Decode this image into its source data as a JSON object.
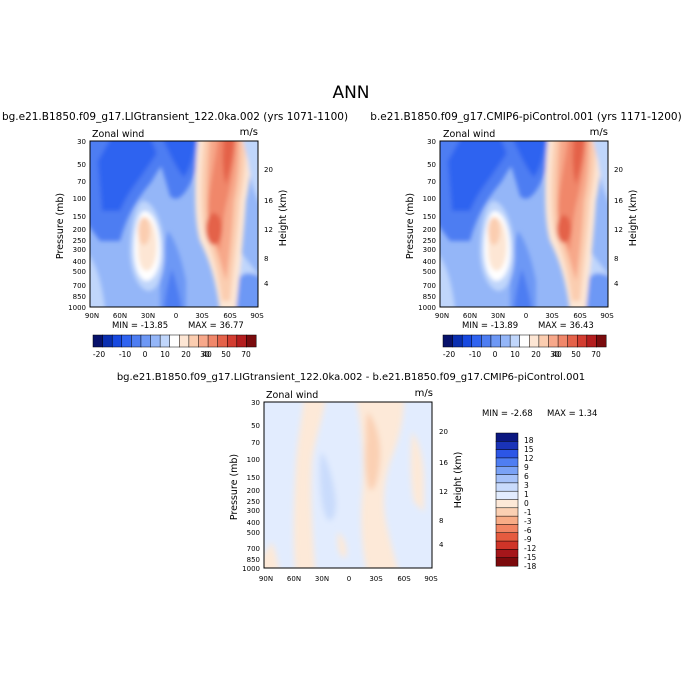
{
  "page_title": "ANN",
  "colors": {
    "main_scale": [
      "#08126b",
      "#0a2fb0",
      "#1749e0",
      "#2f63f0",
      "#4d7df2",
      "#6d98f5",
      "#94b6f8",
      "#c0d6fb",
      "#ffffff",
      "#fde6d4",
      "#fbcdb0",
      "#f7a88a",
      "#f0876a",
      "#e4624a",
      "#d33d31",
      "#b41d1e",
      "#7a0b0d"
    ],
    "diff_scale": [
      "#0b1780",
      "#1a33b8",
      "#2c56e6",
      "#4f7ef2",
      "#7aa2f6",
      "#a6c2f9",
      "#c9dbfc",
      "#e2ecfe",
      "#fde9d8",
      "#fbd0b3",
      "#f8ac86",
      "#f28563",
      "#e55b3f",
      "#cf3428",
      "#a5161a",
      "#7c0a0c"
    ]
  },
  "chart_data": [
    {
      "type": "heatmap",
      "title": "bg.e21.B1850.f09_g17.LIGtransient_122.0ka.002 (yrs 1071-1100)",
      "left_string": "Zonal wind",
      "right_string": "m/s",
      "ylabel": "Pressure (mb)",
      "ylabel_right": "Height (km)",
      "x_ticks": [
        "90N",
        "60N",
        "30N",
        "0",
        "30S",
        "60S",
        "90S"
      ],
      "y_ticks": [
        "30",
        "50",
        "70",
        "100",
        "150",
        "200",
        "250",
        "300",
        "400",
        "500",
        "700",
        "850",
        "1000"
      ],
      "y_ticks_right": [
        "20",
        "16",
        "12",
        "8",
        "4"
      ],
      "y_log_scale": true,
      "ylim": [
        1000,
        30
      ],
      "xlim": [
        "90N",
        "90S"
      ],
      "min_text": "MIN = -13.85",
      "max_text": "MAX = 36.77",
      "min": -13.85,
      "max": 36.77,
      "colorbar_labels": [
        "-20",
        "-10",
        "0",
        "10",
        "20",
        "30",
        "40",
        "50",
        "70"
      ],
      "features": {
        "nh_jet": {
          "lat": 30,
          "p": 200,
          "u": 22
        },
        "sh_jet": {
          "lat": -42,
          "p": 200,
          "u": 36.77
        }
      }
    },
    {
      "type": "heatmap",
      "title": "b.e21.B1850.f09_g17.CMIP6-piControl.001 (yrs 1171-1200)",
      "left_string": "Zonal wind",
      "right_string": "m/s",
      "ylabel": "Pressure (mb)",
      "ylabel_right": "Height (km)",
      "x_ticks": [
        "90N",
        "60N",
        "30N",
        "0",
        "30S",
        "60S",
        "90S"
      ],
      "y_ticks": [
        "30",
        "50",
        "70",
        "100",
        "150",
        "200",
        "250",
        "300",
        "400",
        "500",
        "700",
        "850",
        "1000"
      ],
      "y_ticks_right": [
        "20",
        "16",
        "12",
        "8",
        "4"
      ],
      "y_log_scale": true,
      "ylim": [
        1000,
        30
      ],
      "xlim": [
        "90N",
        "90S"
      ],
      "min_text": "MIN = -13.89",
      "max_text": "MAX = 36.43",
      "min": -13.89,
      "max": 36.43,
      "colorbar_labels": [
        "-20",
        "-10",
        "0",
        "10",
        "20",
        "30",
        "40",
        "50",
        "70"
      ],
      "features": {
        "nh_jet": {
          "lat": 30,
          "p": 200,
          "u": 22
        },
        "sh_jet": {
          "lat": -42,
          "p": 200,
          "u": 36.43
        }
      }
    },
    {
      "type": "heatmap",
      "title": "bg.e21.B1850.f09_g17.LIGtransient_122.0ka.002 - b.e21.B1850.f09_g17.CMIP6-piControl.001",
      "left_string": "Zonal wind",
      "right_string": "m/s",
      "ylabel": "Pressure (mb)",
      "ylabel_right": "Height (km)",
      "x_ticks": [
        "90N",
        "60N",
        "30N",
        "0",
        "30S",
        "60S",
        "90S"
      ],
      "y_ticks": [
        "30",
        "50",
        "70",
        "100",
        "150",
        "200",
        "250",
        "300",
        "400",
        "500",
        "700",
        "850",
        "1000"
      ],
      "y_ticks_right": [
        "20",
        "16",
        "12",
        "8",
        "4"
      ],
      "y_log_scale": true,
      "ylim": [
        1000,
        30
      ],
      "xlim": [
        "90N",
        "90S"
      ],
      "min_text": "MIN = -2.68",
      "max_text": "MAX = 1.34",
      "min": -2.68,
      "max": 1.34,
      "colorbar_labels": [
        "18",
        "15",
        "12",
        "9",
        "6",
        "3",
        "1",
        "0",
        "-1",
        "-3",
        "-6",
        "-9",
        "-12",
        "-15",
        "-18"
      ]
    }
  ]
}
